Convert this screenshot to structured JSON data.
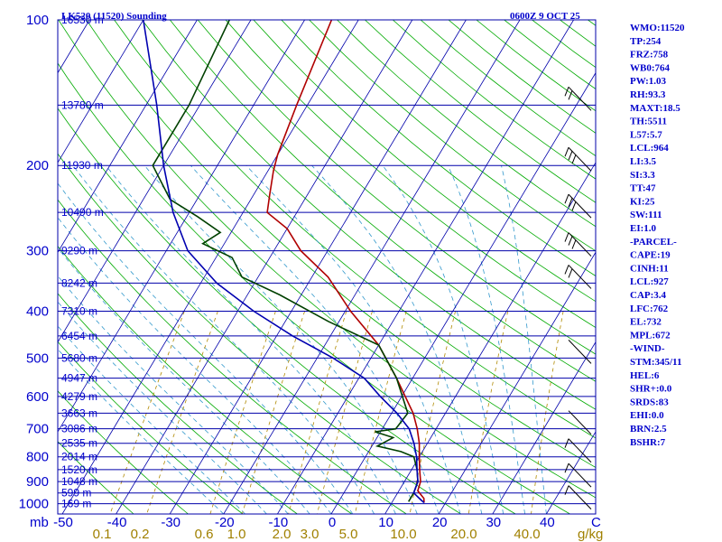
{
  "chart_data": {
    "type": "skew-t sounding",
    "title": "LK520 (11520) Sounding",
    "datetime": "0600Z  9 OCT 25",
    "pressure_axis": {
      "levels": [
        100,
        200,
        300,
        400,
        500,
        600,
        700,
        800,
        900,
        1000
      ],
      "labels": [
        "100",
        "200",
        "300",
        "400",
        "500",
        "600",
        "700",
        "800",
        "900",
        "1000"
      ],
      "range_mb": [
        100,
        1000
      ],
      "unit_label": "mb"
    },
    "height_labels": [
      {
        "p": 100,
        "label": "16530 m"
      },
      {
        "p": 150,
        "label": "13780 m"
      },
      {
        "p": 200,
        "label": "11930 m"
      },
      {
        "p": 250,
        "label": "10490 m"
      },
      {
        "p": 300,
        "label": "9290 m"
      },
      {
        "p": 350,
        "label": "8242 m"
      },
      {
        "p": 400,
        "label": "7310 m"
      },
      {
        "p": 450,
        "label": "6454 m"
      },
      {
        "p": 500,
        "label": "5680 m"
      },
      {
        "p": 550,
        "label": "4947 m"
      },
      {
        "p": 600,
        "label": "4279 m"
      },
      {
        "p": 650,
        "label": "3663 m"
      },
      {
        "p": 700,
        "label": "3086 m"
      },
      {
        "p": 750,
        "label": "2535 m"
      },
      {
        "p": 800,
        "label": "2014 m"
      },
      {
        "p": 850,
        "label": "1520 m"
      },
      {
        "p": 900,
        "label": "1048 m"
      },
      {
        "p": 950,
        "label": "599 m"
      },
      {
        "p": 1000,
        "label": "169 m"
      }
    ],
    "temperature_axis": {
      "values": [
        -50,
        -40,
        -30,
        -20,
        -10,
        0,
        10,
        20,
        30,
        40
      ],
      "labels": [
        "-50",
        "-40",
        "-30",
        "-20",
        "-10",
        "0",
        "10",
        "20",
        "30",
        "40"
      ],
      "range_c": [
        -50,
        50
      ],
      "unit_label": "C"
    },
    "mixing_ratio_axis": {
      "values": [
        0.1,
        0.2,
        0.6,
        1.0,
        2.0,
        3.0,
        5.0,
        10.0,
        20.0,
        40.0
      ],
      "labels": [
        "0.1",
        "0.2",
        "0.6",
        "1.0",
        "2.0",
        "3.0",
        "5.0",
        "10.0",
        "20.0",
        "40.0"
      ],
      "unit_label": "g/kg"
    },
    "series": [
      {
        "name": "temperature",
        "color": "#b00000",
        "points": [
          [
            100,
            -55
          ],
          [
            150,
            -52
          ],
          [
            190,
            -50
          ],
          [
            205,
            -49
          ],
          [
            230,
            -47
          ],
          [
            250,
            -45.5
          ],
          [
            270,
            -40
          ],
          [
            300,
            -35
          ],
          [
            340,
            -27
          ],
          [
            400,
            -19
          ],
          [
            470,
            -10
          ],
          [
            550,
            -3
          ],
          [
            650,
            4
          ],
          [
            700,
            6.5
          ],
          [
            750,
            8.5
          ],
          [
            800,
            10
          ],
          [
            850,
            11.5
          ],
          [
            900,
            13
          ],
          [
            940,
            13.5
          ],
          [
            975,
            15.5
          ],
          [
            995,
            16
          ]
        ]
      },
      {
        "name": "dewpoint",
        "color": "#004000",
        "points": [
          [
            100,
            -74
          ],
          [
            150,
            -72
          ],
          [
            200,
            -72
          ],
          [
            235,
            -65
          ],
          [
            255,
            -58
          ],
          [
            275,
            -52
          ],
          [
            290,
            -54
          ],
          [
            310,
            -47
          ],
          [
            340,
            -43
          ],
          [
            370,
            -34
          ],
          [
            420,
            -22
          ],
          [
            470,
            -10
          ],
          [
            550,
            -3
          ],
          [
            650,
            3
          ],
          [
            700,
            2.5
          ],
          [
            710,
            -1
          ],
          [
            730,
            3
          ],
          [
            760,
            1
          ],
          [
            780,
            6
          ],
          [
            800,
            9
          ],
          [
            850,
            11
          ],
          [
            900,
            12.5
          ],
          [
            950,
            13
          ],
          [
            990,
            13
          ]
        ]
      },
      {
        "name": "parcel",
        "color": "#0000b0",
        "points": [
          [
            100,
            -90
          ],
          [
            150,
            -78
          ],
          [
            200,
            -70
          ],
          [
            250,
            -63
          ],
          [
            300,
            -56
          ],
          [
            350,
            -47
          ],
          [
            400,
            -37
          ],
          [
            450,
            -27
          ],
          [
            500,
            -17
          ],
          [
            550,
            -9
          ],
          [
            600,
            -4
          ],
          [
            650,
            1
          ],
          [
            700,
            5
          ],
          [
            750,
            7.5
          ],
          [
            800,
            9.5
          ],
          [
            850,
            11
          ],
          [
            900,
            12.5
          ],
          [
            950,
            13
          ],
          [
            980,
            15
          ],
          [
            995,
            16
          ]
        ]
      }
    ],
    "wind_barbs": [
      {
        "p": 150,
        "flags": 2
      },
      {
        "p": 200,
        "flags": 3
      },
      {
        "p": 250,
        "flags": 3
      },
      {
        "p": 300,
        "flags": 3
      },
      {
        "p": 350,
        "flags": 2
      },
      {
        "p": 500,
        "flags": 0
      },
      {
        "p": 700,
        "flags": 0
      },
      {
        "p": 800,
        "flags": 1
      },
      {
        "p": 900,
        "flags": 1
      },
      {
        "p": 1000,
        "flags": 1
      }
    ],
    "indices": [
      "WMO:11520",
      "TP:254",
      "FRZ:758",
      "WB0:764",
      "PW:1.03",
      "RH:93.3",
      "MAXT:18.5",
      "TH:5511",
      "L57:5.7",
      "LCL:964",
      "LI:3.5",
      "SI:3.3",
      "TT:47",
      "KI:25",
      "SW:111",
      "EI:1.0",
      "-PARCEL-",
      "CAPE:19",
      "CINH:11",
      "LCL:927",
      "CAP:3.4",
      "LFC:762",
      "EL:732",
      "MPL:672",
      "-WIND-",
      "STM:345/11",
      "HEL:6",
      "SHR+:0.0",
      "SRDS:83",
      "EHI:0.0",
      "BRN:2.5",
      "BSHR:7"
    ],
    "colors": {
      "isobar": "#0000aa",
      "isotherm": "#0000aa",
      "dry_adiabat": "#00aa00",
      "moist_adiabat": "#3399cc",
      "mixing_ratio": "#b08a00",
      "label": "#0000cc",
      "mixing_label": "#a08000"
    }
  }
}
